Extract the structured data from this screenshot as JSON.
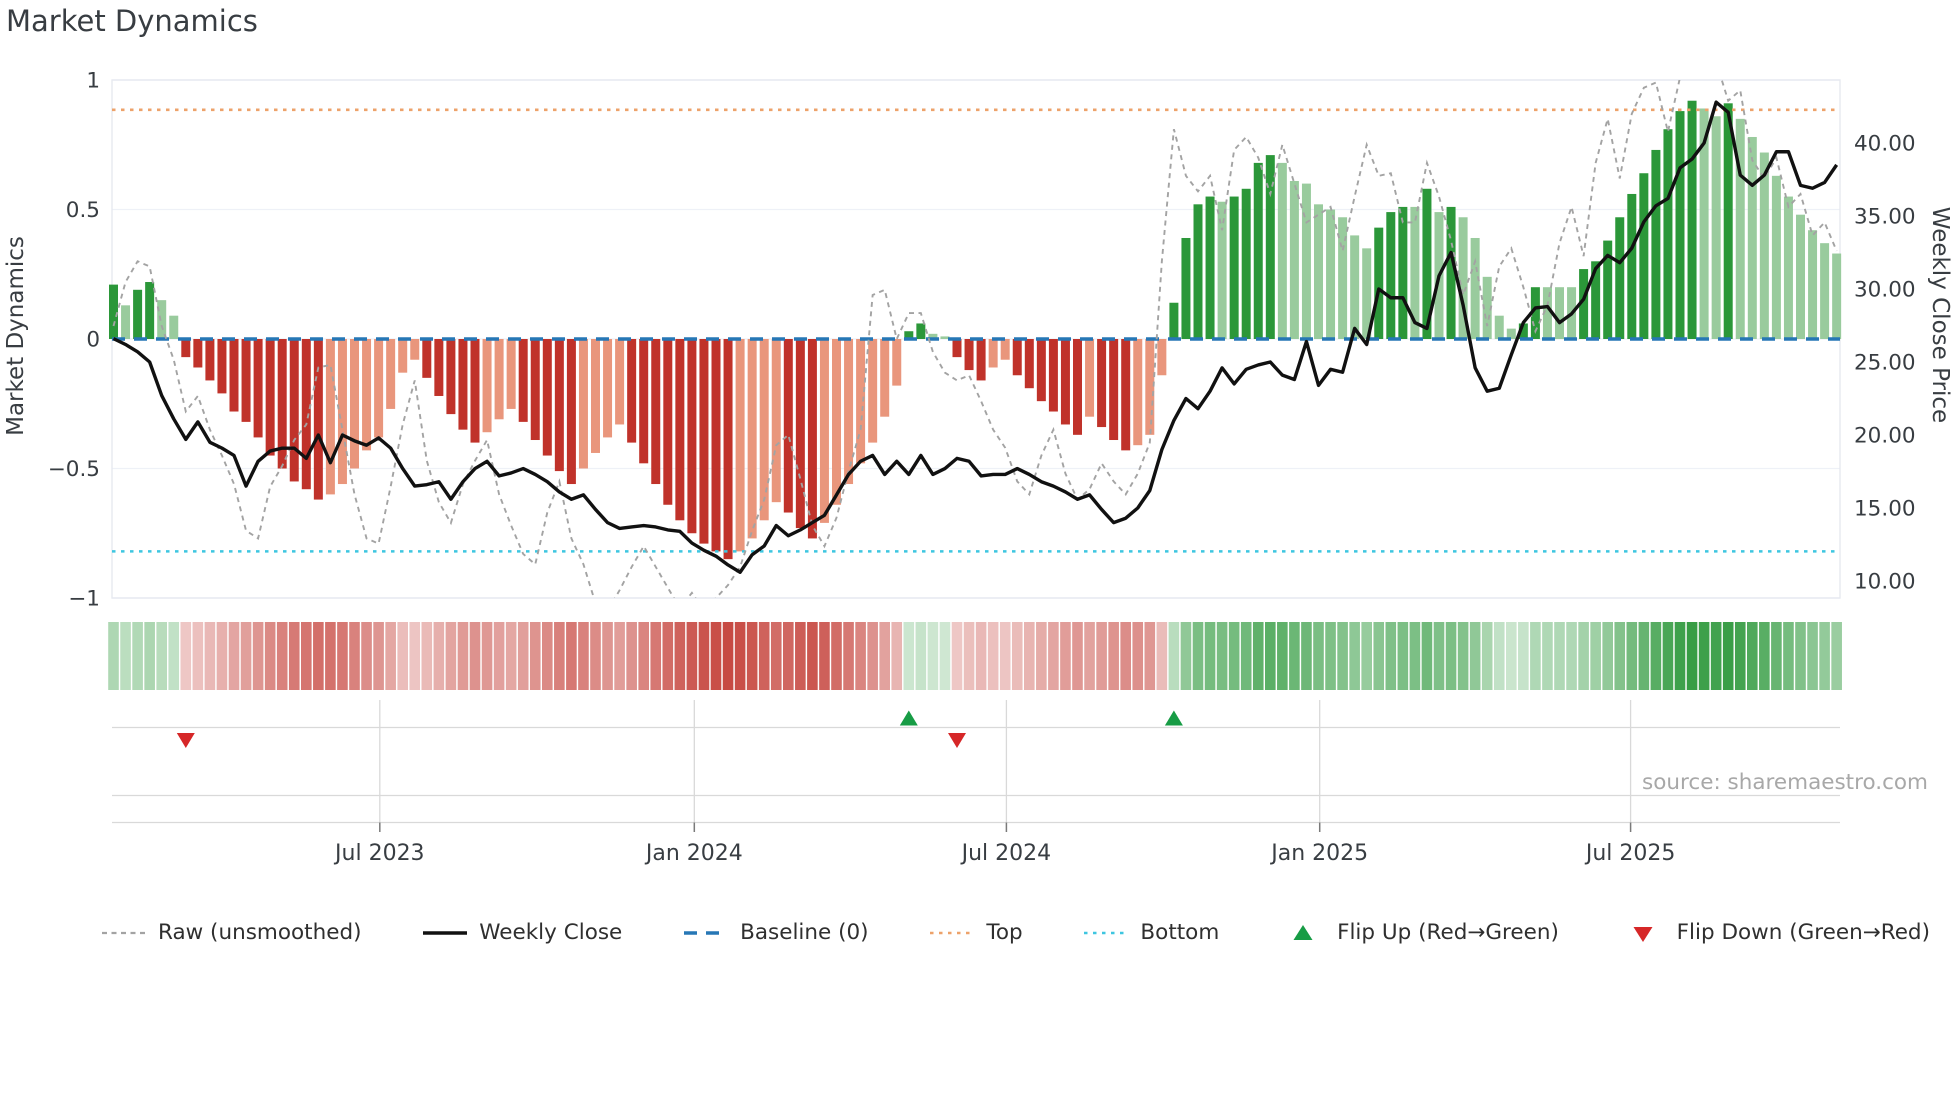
{
  "title": "Market Dynamics",
  "source": "source: sharemaestro.com",
  "axes": {
    "left_title": "Market Dynamics",
    "right_title": "Weekly Close Price"
  },
  "legend": {
    "items": [
      {
        "label": "Raw (unsmoothed)",
        "type": "dashed-gray-line"
      },
      {
        "label": "Weekly Close",
        "type": "solid-black-line"
      },
      {
        "label": "Baseline (0)",
        "type": "dashed-blue-line"
      },
      {
        "label": "Top",
        "type": "dotted-orange-line"
      },
      {
        "label": "Bottom",
        "type": "dotted-cyan-line"
      },
      {
        "label": "Flip Up (Red→Green)",
        "type": "triangle-up-green"
      },
      {
        "label": "Flip Down (Green→Red)",
        "type": "triangle-down-red"
      }
    ]
  },
  "colors": {
    "bar_pos_strong": "#2b9739",
    "bar_pos_light": "#99cb9d",
    "bar_neg_strong": "#c0322a",
    "bar_neg_light": "#e9967c",
    "close_line": "#111111",
    "raw_line": "#a3a3a3",
    "baseline": "#2677b5",
    "top_line": "#eda26a",
    "bottom_line": "#3ec6e0",
    "flip_up": "#179c45",
    "flip_down": "#d62728",
    "grid": "#eef1f7",
    "border": "#e6e9f0",
    "marker_grid": "#d9d9d9",
    "tick_text": "#383d42"
  },
  "chart_data": {
    "type": "bar",
    "title": "Market Dynamics",
    "n_weeks": 144,
    "x_axis": {
      "tick_labels": [
        "Jul 2023",
        "Jan 2024",
        "Jul 2024",
        "Jan 2025",
        "Jul 2025"
      ],
      "tick_weeks": [
        22.1,
        48.2,
        74.1,
        100.1,
        125.9
      ]
    },
    "y_left": {
      "label": "Market Dynamics",
      "range": [
        -1,
        1
      ],
      "tick_values": [
        1,
        0.5,
        0,
        -0.5,
        -1
      ],
      "tick_labels": [
        "1",
        "0.5",
        "0",
        "−0.5",
        "−1"
      ]
    },
    "y_right": {
      "label": "Weekly Close Price",
      "tick_values": [
        40,
        35,
        30,
        25,
        20,
        15,
        10
      ],
      "tick_labels": [
        "40.00",
        "35.00",
        "30.00",
        "25.00",
        "20.00",
        "15.00",
        "10.00"
      ]
    },
    "reference_lines": {
      "baseline": 0,
      "top": 0.885,
      "bottom": -0.82
    },
    "markers": {
      "flip_up_weeks": [
        66,
        88
      ],
      "flip_down_weeks": [
        6,
        70
      ]
    },
    "series": [
      {
        "name": "Market Dynamics",
        "type": "bar",
        "axis": "left",
        "values": [
          0.21,
          0.13,
          0.19,
          0.22,
          0.15,
          0.09,
          -0.07,
          -0.11,
          -0.16,
          -0.21,
          -0.28,
          -0.32,
          -0.38,
          -0.45,
          -0.5,
          -0.55,
          -0.58,
          -0.62,
          -0.6,
          -0.56,
          -0.5,
          -0.43,
          -0.38,
          -0.27,
          -0.13,
          -0.08,
          -0.15,
          -0.22,
          -0.29,
          -0.35,
          -0.4,
          -0.36,
          -0.31,
          -0.27,
          -0.32,
          -0.39,
          -0.45,
          -0.51,
          -0.56,
          -0.5,
          -0.44,
          -0.38,
          -0.33,
          -0.4,
          -0.48,
          -0.56,
          -0.64,
          -0.7,
          -0.75,
          -0.79,
          -0.82,
          -0.85,
          -0.82,
          -0.77,
          -0.7,
          -0.63,
          -0.67,
          -0.73,
          -0.77,
          -0.71,
          -0.64,
          -0.56,
          -0.48,
          -0.4,
          -0.3,
          -0.18,
          0.03,
          0.06,
          0.02,
          0.01,
          -0.07,
          -0.12,
          -0.16,
          -0.11,
          -0.08,
          -0.14,
          -0.19,
          -0.24,
          -0.28,
          -0.33,
          -0.37,
          -0.3,
          -0.34,
          -0.39,
          -0.43,
          -0.41,
          -0.37,
          -0.14,
          0.14,
          0.39,
          0.52,
          0.55,
          0.53,
          0.55,
          0.58,
          0.68,
          0.71,
          0.68,
          0.61,
          0.6,
          0.52,
          0.5,
          0.47,
          0.4,
          0.35,
          0.43,
          0.49,
          0.51,
          0.51,
          0.58,
          0.49,
          0.51,
          0.47,
          0.39,
          0.24,
          0.09,
          0.04,
          0.06,
          0.2,
          0.2,
          0.2,
          0.2,
          0.27,
          0.3,
          0.38,
          0.47,
          0.56,
          0.64,
          0.73,
          0.81,
          0.88,
          0.92,
          0.89,
          0.86,
          0.91,
          0.85,
          0.78,
          0.72,
          0.63,
          0.55,
          0.48,
          0.42,
          0.37,
          0.33
        ]
      },
      {
        "name": "Raw (unsmoothed)",
        "type": "line",
        "style": "dashed",
        "axis": "left",
        "values": [
          0.05,
          0.22,
          0.3,
          0.28,
          0.05,
          -0.08,
          -0.28,
          -0.22,
          -0.35,
          -0.45,
          -0.56,
          -0.74,
          -0.77,
          -0.57,
          -0.49,
          -0.39,
          -0.33,
          -0.11,
          -0.1,
          -0.35,
          -0.6,
          -0.77,
          -0.79,
          -0.57,
          -0.33,
          -0.16,
          -0.47,
          -0.63,
          -0.71,
          -0.56,
          -0.47,
          -0.39,
          -0.6,
          -0.72,
          -0.83,
          -0.87,
          -0.67,
          -0.55,
          -0.77,
          -0.87,
          -1.02,
          -1.05,
          -0.97,
          -0.88,
          -0.8,
          -0.88,
          -0.96,
          -1.04,
          -0.98,
          -1.05,
          -1.0,
          -0.95,
          -0.88,
          -0.74,
          -0.62,
          -0.41,
          -0.37,
          -0.54,
          -0.72,
          -0.8,
          -0.69,
          -0.51,
          -0.35,
          0.17,
          0.19,
          0.0,
          0.1,
          0.1,
          -0.05,
          -0.13,
          -0.16,
          -0.14,
          -0.24,
          -0.35,
          -0.42,
          -0.55,
          -0.6,
          -0.45,
          -0.35,
          -0.52,
          -0.62,
          -0.58,
          -0.48,
          -0.55,
          -0.6,
          -0.52,
          -0.4,
          0.3,
          0.81,
          0.63,
          0.57,
          0.63,
          0.42,
          0.73,
          0.78,
          0.7,
          0.56,
          0.75,
          0.6,
          0.45,
          0.48,
          0.51,
          0.34,
          0.55,
          0.75,
          0.63,
          0.64,
          0.45,
          0.45,
          0.68,
          0.55,
          0.38,
          0.17,
          0.3,
          0.05,
          0.28,
          0.35,
          0.2,
          0.03,
          0.13,
          0.37,
          0.51,
          0.32,
          0.68,
          0.85,
          0.62,
          0.87,
          0.97,
          0.99,
          0.8,
          1.01,
          1.04,
          1.05,
          1.07,
          0.92,
          0.96,
          0.69,
          0.62,
          0.7,
          0.51,
          0.56,
          0.4,
          0.45,
          0.34
        ]
      },
      {
        "name": "Weekly Close",
        "type": "line",
        "axis": "right",
        "values": [
          26.6,
          26.2,
          25.7,
          25.0,
          22.7,
          21.1,
          19.7,
          20.9,
          19.5,
          19.1,
          18.6,
          16.5,
          18.2,
          18.9,
          19.1,
          19.1,
          18.4,
          20.0,
          18.1,
          20.0,
          19.6,
          19.3,
          19.8,
          19.1,
          17.7,
          16.5,
          16.6,
          16.8,
          15.6,
          16.8,
          17.7,
          18.2,
          17.2,
          17.4,
          17.7,
          17.3,
          16.8,
          16.1,
          15.6,
          15.9,
          14.9,
          14.0,
          13.6,
          13.7,
          13.8,
          13.7,
          13.5,
          13.4,
          12.6,
          12.1,
          11.7,
          11.1,
          10.6,
          11.8,
          12.4,
          13.8,
          13.1,
          13.5,
          14.0,
          14.5,
          15.9,
          17.3,
          18.2,
          18.6,
          17.3,
          18.2,
          17.3,
          18.6,
          17.3,
          17.7,
          18.4,
          18.2,
          17.2,
          17.3,
          17.3,
          17.7,
          17.3,
          16.8,
          16.5,
          16.1,
          15.6,
          15.9,
          14.9,
          14.0,
          14.3,
          15.0,
          16.2,
          19.0,
          21.0,
          22.5,
          21.8,
          23.0,
          24.6,
          23.5,
          24.5,
          24.8,
          25.0,
          24.1,
          23.8,
          26.4,
          23.4,
          24.5,
          24.3,
          27.3,
          26.2,
          30.0,
          29.4,
          29.4,
          27.7,
          27.3,
          30.9,
          32.5,
          28.9,
          24.6,
          23.0,
          23.2,
          25.5,
          27.7,
          28.7,
          28.8,
          27.7,
          28.3,
          29.3,
          31.4,
          32.3,
          31.8,
          32.8,
          34.6,
          35.7,
          36.2,
          38.3,
          38.9,
          40.0,
          42.8,
          42.1,
          37.8,
          37.1,
          37.8,
          39.4,
          39.4,
          37.1,
          36.9,
          37.3,
          38.5
        ]
      }
    ]
  }
}
